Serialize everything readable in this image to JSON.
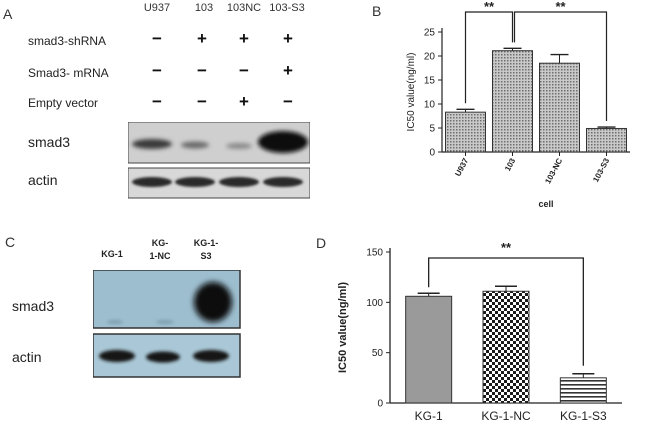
{
  "panel_a": {
    "letter": "A",
    "columns": [
      "U937",
      "103",
      "103NC",
      "103-S3"
    ],
    "rows": [
      {
        "label": "smad3-shRNA",
        "marks": [
          "−",
          "+",
          "+",
          "+"
        ]
      },
      {
        "label": "Smad3- mRNA",
        "marks": [
          "−",
          "−",
          "−",
          "+"
        ]
      },
      {
        "label": "Empty vector",
        "marks": [
          "−",
          "−",
          "+",
          "−"
        ]
      }
    ],
    "blot_labels": [
      "smad3",
      "actin"
    ]
  },
  "panel_c": {
    "letter": "C",
    "columns": [
      "KG-1",
      "KG-\n1-NC",
      "KG-1-\nS3"
    ],
    "blot_labels": [
      "smad3",
      "actin"
    ]
  },
  "chart_data": [
    {
      "letter": "B",
      "type": "bar",
      "categories": [
        "U937",
        "103",
        "103-NC",
        "103-S3"
      ],
      "values": [
        8.3,
        21.1,
        18.5,
        4.9
      ],
      "errors": [
        0.6,
        0.5,
        1.8,
        0.3
      ],
      "xlabel": "cell",
      "ylabel": "IC50 value(ng/ml)",
      "ylim": [
        0,
        25
      ],
      "yticks": [
        0,
        5,
        10,
        15,
        20,
        25
      ],
      "significance": [
        {
          "from": "U937",
          "to": "103",
          "label": "**"
        },
        {
          "from": "103",
          "to": "103-S3",
          "label": "**"
        }
      ],
      "fill": "hatched grey",
      "grid": false
    },
    {
      "letter": "D",
      "type": "bar",
      "categories": [
        "KG-1",
        "KG-1-NC",
        "KG-1-S3"
      ],
      "values": [
        106,
        111,
        25
      ],
      "errors": [
        3,
        5,
        4
      ],
      "xlabel": "",
      "ylabel": "IC50 value(ng/ml)",
      "ylim": [
        0,
        150
      ],
      "yticks": [
        0,
        50,
        100,
        150
      ],
      "significance": [
        {
          "from": "KG-1",
          "to": "KG-1-S3",
          "label": "**"
        }
      ],
      "fills": [
        "#9a9a9a",
        "checkered",
        "striped"
      ],
      "grid": false
    }
  ]
}
